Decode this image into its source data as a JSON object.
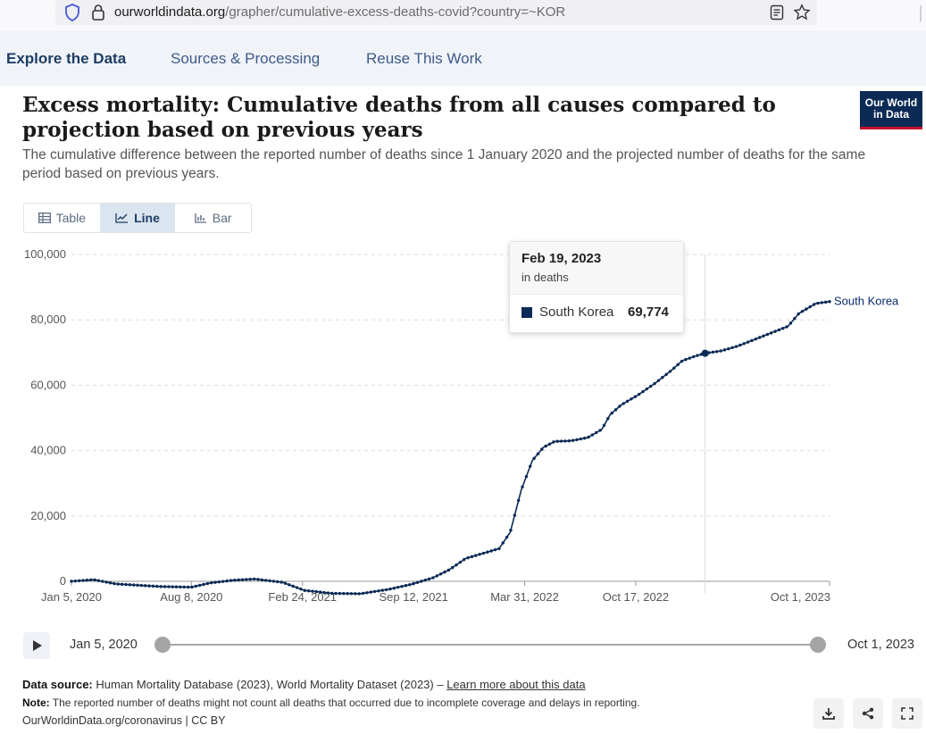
{
  "browser": {
    "url_host": "ourworldindata.org",
    "url_path": "/grapher/cumulative-excess-deaths-covid?country=~KOR"
  },
  "nav": {
    "explore": "Explore the Data",
    "sources": "Sources & Processing",
    "reuse": "Reuse This Work"
  },
  "header": {
    "title": "Excess mortality: Cumulative deaths from all causes compared to projection based on previous years",
    "subtitle": "The cumulative difference between the reported number of deaths since 1 January 2020 and the projected number of deaths for the same period based on previous years.",
    "logo_line1": "Our World",
    "logo_line2": "in Data"
  },
  "tabs": {
    "table": "Table",
    "line": "Line",
    "bar": "Bar"
  },
  "tooltip": {
    "date": "Feb 19, 2023",
    "unit": "in deaths",
    "entity": "South Korea",
    "value": "69,774"
  },
  "timeline": {
    "start": "Jan 5, 2020",
    "end": "Oct 1, 2023"
  },
  "footer": {
    "source_label": "Data source:",
    "source_text": "Human Mortality Database (2023), World Mortality Dataset (2023) –",
    "learn_more": "Learn more about this data",
    "note_label": "Note:",
    "note_text": "The reported number of deaths might not count all deaths that occurred due to incomplete coverage and delays in reporting.",
    "credit": "OurWorldinData.org/coronavirus | CC BY"
  },
  "colors": {
    "series": "#0b2a55",
    "grid": "#dddddd",
    "brand_red": "#c8102e"
  },
  "chart_data": {
    "type": "line",
    "title": "Excess mortality: Cumulative deaths from all causes compared to projection based on previous years",
    "ylabel": "deaths",
    "ylim": [
      0,
      100000
    ],
    "yticks": [
      0,
      20000,
      40000,
      60000,
      80000,
      100000
    ],
    "ytick_labels": [
      "0",
      "20,000",
      "40,000",
      "60,000",
      "80,000",
      "100,000"
    ],
    "xrange_days": [
      0,
      1365
    ],
    "xticks": [
      {
        "day": 0,
        "label": "Jan 5, 2020"
      },
      {
        "day": 216,
        "label": "Aug 8, 2020"
      },
      {
        "day": 416,
        "label": "Feb 24, 2021"
      },
      {
        "day": 616,
        "label": "Sep 12, 2021"
      },
      {
        "day": 816,
        "label": "Mar 31, 2022"
      },
      {
        "day": 1016,
        "label": "Oct 17, 2022"
      },
      {
        "day": 1365,
        "label": "Oct 1, 2023"
      }
    ],
    "hover_day": 1141,
    "hover_value": 69774,
    "series": [
      {
        "name": "South Korea",
        "points": [
          [
            0,
            0
          ],
          [
            40,
            500
          ],
          [
            80,
            -800
          ],
          [
            120,
            -1200
          ],
          [
            160,
            -1600
          ],
          [
            216,
            -1800
          ],
          [
            250,
            -500
          ],
          [
            290,
            300
          ],
          [
            330,
            700
          ],
          [
            380,
            -300
          ],
          [
            420,
            -2800
          ],
          [
            470,
            -3700
          ],
          [
            520,
            -3800
          ],
          [
            570,
            -2500
          ],
          [
            610,
            -1000
          ],
          [
            650,
            1000
          ],
          [
            680,
            3500
          ],
          [
            710,
            7000
          ],
          [
            740,
            8500
          ],
          [
            770,
            10000
          ],
          [
            790,
            15000
          ],
          [
            810,
            28000
          ],
          [
            830,
            37000
          ],
          [
            850,
            41000
          ],
          [
            870,
            42800
          ],
          [
            900,
            43000
          ],
          [
            930,
            44000
          ],
          [
            955,
            46500
          ],
          [
            970,
            51000
          ],
          [
            990,
            54000
          ],
          [
            1020,
            57000
          ],
          [
            1050,
            60500
          ],
          [
            1080,
            64500
          ],
          [
            1100,
            67500
          ],
          [
            1125,
            69000
          ],
          [
            1141,
            69774
          ],
          [
            1170,
            70500
          ],
          [
            1200,
            72000
          ],
          [
            1230,
            74000
          ],
          [
            1260,
            76000
          ],
          [
            1290,
            78000
          ],
          [
            1310,
            82000
          ],
          [
            1340,
            85000
          ],
          [
            1365,
            85600
          ]
        ]
      }
    ]
  }
}
